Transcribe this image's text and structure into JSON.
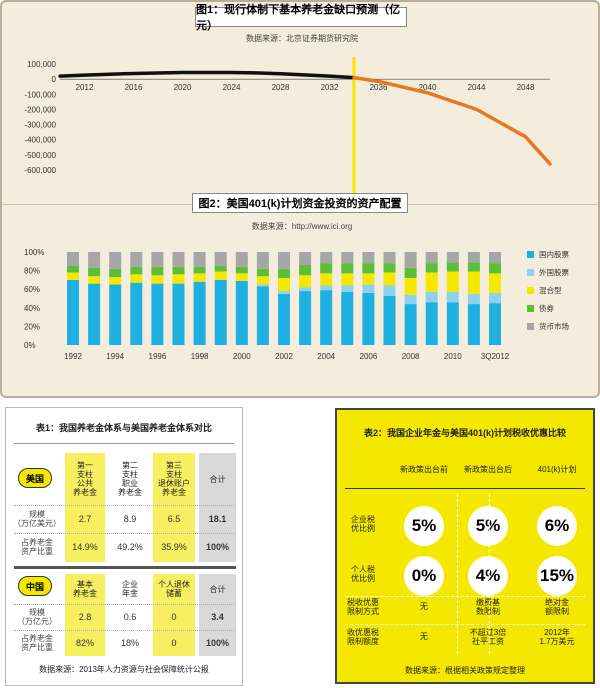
{
  "colors": {
    "black_line": "#111111",
    "orange_line": "#e8771f",
    "marker": "#f4e800",
    "bar_dom": "#1eb0e0",
    "bar_foreign": "#8cd2f0",
    "bar_mixed": "#f4e800",
    "bar_bond": "#5cbf3a",
    "bar_money": "#a6a6a6"
  },
  "chart1": {
    "title": "图1：现行体制下基本养老金缺口预测（亿元）",
    "source": "数据来源：北京证券期货研究院"
  },
  "chart2": {
    "title": "图2：美国401(k)计划资金投资的资产配置",
    "source": "数据来源：http://www.ici.org"
  },
  "chart_data": [
    {
      "type": "line",
      "title": "图1：现行体制下基本养老金缺口预测（亿元）",
      "x_ticks": [
        "2012",
        "2016",
        "2020",
        "2024",
        "2028",
        "2032",
        "2036",
        "2040",
        "2044",
        "2048"
      ],
      "y_ticks": [
        "100,000",
        "0",
        "-100,000",
        "-200,000",
        "-300,000",
        "-400,000",
        "-500,000",
        "-600,000"
      ],
      "ylim": [
        -600000,
        100000
      ],
      "xlim": [
        2010,
        2050
      ],
      "series": [
        {
          "color": "#111111",
          "x": [
            2010,
            2012,
            2016,
            2020,
            2024,
            2026,
            2028,
            2032,
            2034
          ],
          "y": [
            20000,
            27000,
            37000,
            44000,
            44000,
            41000,
            35000,
            20000,
            10000
          ]
        },
        {
          "color": "#e8771f",
          "x": [
            2034,
            2036,
            2040,
            2044,
            2048,
            2050
          ],
          "y": [
            10000,
            -15000,
            -90000,
            -200000,
            -380000,
            -560000
          ]
        }
      ],
      "marker_x": 2034
    },
    {
      "type": "bar",
      "stacked": true,
      "title": "图2：美国401(k)计划资金投资的资产配置",
      "x_ticks": [
        "1992",
        "1994",
        "1996",
        "1998",
        "2000",
        "2002",
        "2004",
        "2006",
        "2008",
        "2010",
        "3Q2012"
      ],
      "y_ticks": [
        "100%",
        "80%",
        "60%",
        "40%",
        "20%",
        "0%"
      ],
      "ylim": [
        0,
        100
      ],
      "categories": [
        "1992",
        "1993",
        "1994",
        "1995",
        "1996",
        "1997",
        "1998",
        "1999",
        "2000",
        "2001",
        "2002",
        "2003",
        "2004",
        "2005",
        "2006",
        "2007",
        "2008",
        "2009",
        "2010",
        "2011",
        "3Q2012"
      ],
      "series": [
        {
          "name": "国内股票",
          "values": [
            70,
            66,
            65,
            67,
            66,
            66,
            68,
            70,
            69,
            63,
            55,
            58,
            59,
            57,
            56,
            53,
            44,
            46,
            46,
            44,
            45
          ]
        },
        {
          "name": "外国股票",
          "values": [
            0,
            0,
            0,
            0,
            0,
            0,
            0,
            0,
            0,
            2,
            3,
            4,
            5,
            7,
            9,
            11,
            10,
            11,
            11,
            11,
            11
          ]
        },
        {
          "name": "混合型",
          "values": [
            8,
            8,
            8,
            9,
            9,
            10,
            9,
            9,
            8,
            9,
            14,
            13,
            13,
            13,
            12,
            14,
            18,
            21,
            22,
            24,
            21
          ]
        },
        {
          "name": "债券",
          "values": [
            7,
            9,
            9,
            8,
            9,
            8,
            7,
            6,
            7,
            8,
            10,
            11,
            11,
            11,
            11,
            10,
            11,
            10,
            10,
            10,
            11
          ]
        },
        {
          "name": "货币市场",
          "values": [
            15,
            17,
            18,
            16,
            16,
            16,
            16,
            15,
            16,
            18,
            18,
            14,
            12,
            12,
            12,
            12,
            17,
            12,
            11,
            11,
            12
          ]
        }
      ]
    }
  ],
  "table1": {
    "title": "表1：我国养老金体系与美国养老金体系对比",
    "us": {
      "badge": "美国",
      "headers": [
        "第一\n支柱\n公共\n养老金",
        "第二\n支柱\n职业\n养老金",
        "第三\n支柱\n退休账户\n养老金",
        "合计"
      ],
      "rows": [
        {
          "label": "规模\n（万亿美元）",
          "values": [
            "2.7",
            "8.9",
            "6.5",
            "18.1"
          ]
        },
        {
          "label": "占养老金\n资产比重",
          "values": [
            "14.9%",
            "49.2%",
            "35.9%",
            "100%"
          ]
        }
      ]
    },
    "cn": {
      "badge": "中国",
      "headers": [
        "基本\n养老金",
        "企业\n年金",
        "个人退休\n储蓄",
        "合计"
      ],
      "rows": [
        {
          "label": "规模\n（万亿元）",
          "values": [
            "2.8",
            "0.6",
            "0",
            "3.4"
          ]
        },
        {
          "label": "占养老金\n资产比重",
          "values": [
            "82%",
            "18%",
            "0",
            "100%"
          ]
        }
      ]
    },
    "source": "数据来源：2013年人力资源与社会保障统计公报"
  },
  "table2": {
    "title": "表2：我国企业年金与美国401(k)计划税收优惠比较",
    "headers": [
      "新政策出台前",
      "新政策出台后",
      "401(k)计划"
    ],
    "rows": [
      {
        "label": "企业税\n优比例",
        "values": [
          "5%",
          "5%",
          "6%"
        ]
      },
      {
        "label": "个人税\n优比例",
        "values": [
          "0%",
          "4%",
          "15%"
        ]
      },
      {
        "label": "税收优惠\n限制方式",
        "values": [
          "无",
          "缴费基\n数限制",
          "绝对金\n额限制"
        ]
      },
      {
        "label": "收优惠税\n限制额度",
        "values": [
          "无",
          "不超过3倍\n社平工资",
          "2012年\n1.7万美元"
        ]
      }
    ],
    "source": "数据来源：根据相关政策规定整理"
  }
}
